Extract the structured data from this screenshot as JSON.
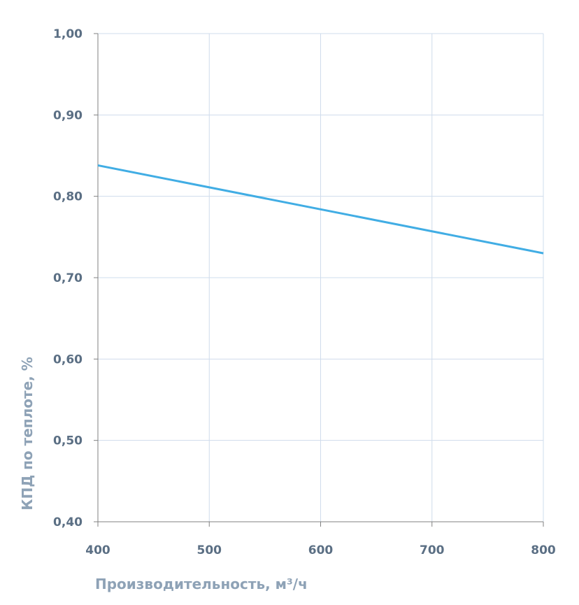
{
  "chart_data": {
    "type": "line",
    "title": "",
    "xlabel": "Производительность, м³/ч",
    "ylabel": "КПД по теплоте, %",
    "xlim": [
      400,
      800
    ],
    "ylim": [
      0.4,
      1.0
    ],
    "x_ticks": [
      400,
      500,
      600,
      700,
      800
    ],
    "x_tick_labels": [
      "400",
      "500",
      "600",
      "700",
      "800"
    ],
    "y_ticks": [
      0.4,
      0.5,
      0.6,
      0.7,
      0.8,
      0.9,
      1.0
    ],
    "y_tick_labels": [
      "0,40",
      "0,50",
      "0,60",
      "0,70",
      "0,80",
      "0,90",
      "1,00"
    ],
    "grid": true,
    "series": [
      {
        "name": "КПД",
        "color": "#41ade4",
        "x": [
          400,
          800
        ],
        "y": [
          0.838,
          0.73
        ]
      }
    ]
  }
}
